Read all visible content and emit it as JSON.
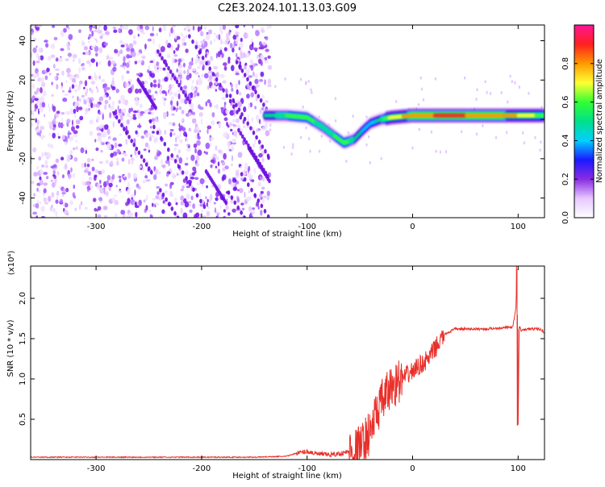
{
  "title": "C2E3.2024.101.13.03.G09",
  "chart_data": [
    {
      "type": "heatmap",
      "title": "C2E3.2024.101.13.03.G09",
      "xlabel": "Height of straight line (km)",
      "ylabel": "Frequency (Hz)",
      "xlim": [
        -362,
        125
      ],
      "ylim": [
        -50,
        48
      ],
      "xticks": [
        -300,
        -200,
        -100,
        0,
        100
      ],
      "yticks": [
        -40,
        -20,
        0,
        20,
        40
      ],
      "colorbar": {
        "label": "Normalized spectral amplitude",
        "range": [
          0,
          1
        ],
        "ticks": [
          "0.0",
          "0.2",
          "0.4",
          "0.6",
          "0.8"
        ],
        "tick_values": [
          0.0,
          0.2,
          0.4,
          0.6,
          0.8
        ],
        "colors": [
          "#ffffff",
          "#e6c8ff",
          "#8a2be2",
          "#1a1aff",
          "#00d0ff",
          "#00e08a",
          "#33ff33",
          "#ffff33",
          "#ff9900",
          "#ff2020",
          "#ff1493"
        ]
      },
      "ridge": {
        "x": [
          -140,
          -120,
          -100,
          -85,
          -75,
          -65,
          -55,
          -48,
          -40,
          -30,
          -20,
          0,
          20,
          50,
          80,
          100,
          125
        ],
        "y": [
          2,
          2,
          1,
          -4,
          -8,
          -12,
          -10,
          -6,
          -2,
          0,
          1,
          2,
          2,
          2,
          2,
          2,
          2
        ],
        "amplitude": [
          0.45,
          0.55,
          0.6,
          0.5,
          0.55,
          0.6,
          0.5,
          0.45,
          0.4,
          0.5,
          0.7,
          0.8,
          0.85,
          0.85,
          0.8,
          0.75,
          0.6
        ]
      },
      "noise_region_x": [
        -362,
        -135
      ]
    },
    {
      "type": "line",
      "xlabel": "Height of straight line (km)",
      "ylabel": "SNR (10 * v/v)",
      "y_multiplier": "(x10⁴)",
      "xlim": [
        -362,
        125
      ],
      "ylim": [
        0,
        2.4
      ],
      "xticks": [
        -300,
        -200,
        -100,
        0,
        100
      ],
      "yticks": [
        0.5,
        1.0,
        1.5,
        2.0
      ],
      "color": "#e8302a",
      "series": [
        {
          "x": [
            -362,
            -300,
            -250,
            -200,
            -150,
            -120,
            -110,
            -100,
            -90,
            -80,
            -70,
            -60,
            -50,
            -45,
            -40,
            -35,
            -30,
            -25,
            -20,
            -15,
            -10,
            -5,
            0,
            5,
            10,
            15,
            20,
            25,
            30,
            40,
            50,
            60,
            70,
            80,
            90,
            95,
            98,
            99,
            100,
            101,
            103,
            110,
            120,
            125
          ],
          "y": [
            0.03,
            0.03,
            0.03,
            0.03,
            0.03,
            0.04,
            0.08,
            0.1,
            0.07,
            0.06,
            0.07,
            0.1,
            0.15,
            0.25,
            0.35,
            0.55,
            0.7,
            0.8,
            0.9,
            0.95,
            1.0,
            1.05,
            1.1,
            1.15,
            1.2,
            1.25,
            1.35,
            1.45,
            1.55,
            1.62,
            1.62,
            1.62,
            1.62,
            1.63,
            1.64,
            1.64,
            1.9,
            2.4,
            0.42,
            1.65,
            1.6,
            1.62,
            1.62,
            1.58
          ]
        }
      ]
    }
  ]
}
